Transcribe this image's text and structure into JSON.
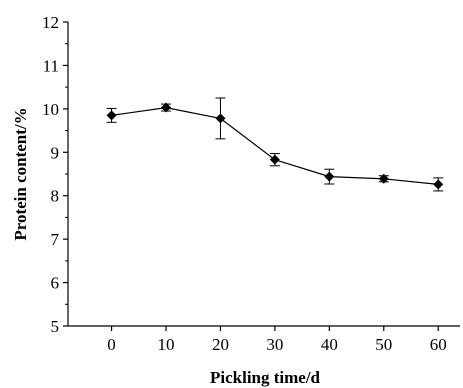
{
  "chart_data": {
    "type": "line",
    "title": "",
    "xlabel": "Pickling time/d",
    "ylabel": "Protein content/%",
    "xlim": [
      -8,
      64
    ],
    "ylim": [
      5,
      12
    ],
    "x_ticks": [
      0,
      10,
      20,
      30,
      40,
      50,
      60
    ],
    "y_ticks": [
      5,
      6,
      7,
      8,
      9,
      10,
      11,
      12
    ],
    "grid": false,
    "legend": "none",
    "marker": "diamond",
    "color": "#000000",
    "series": [
      {
        "x": [
          0,
          10,
          20,
          30,
          40,
          50,
          60
        ],
        "y": [
          9.85,
          10.03,
          9.78,
          8.83,
          8.44,
          8.39,
          8.26
        ],
        "error": [
          0.16,
          0.08,
          0.47,
          0.14,
          0.17,
          0.07,
          0.15
        ]
      }
    ]
  }
}
